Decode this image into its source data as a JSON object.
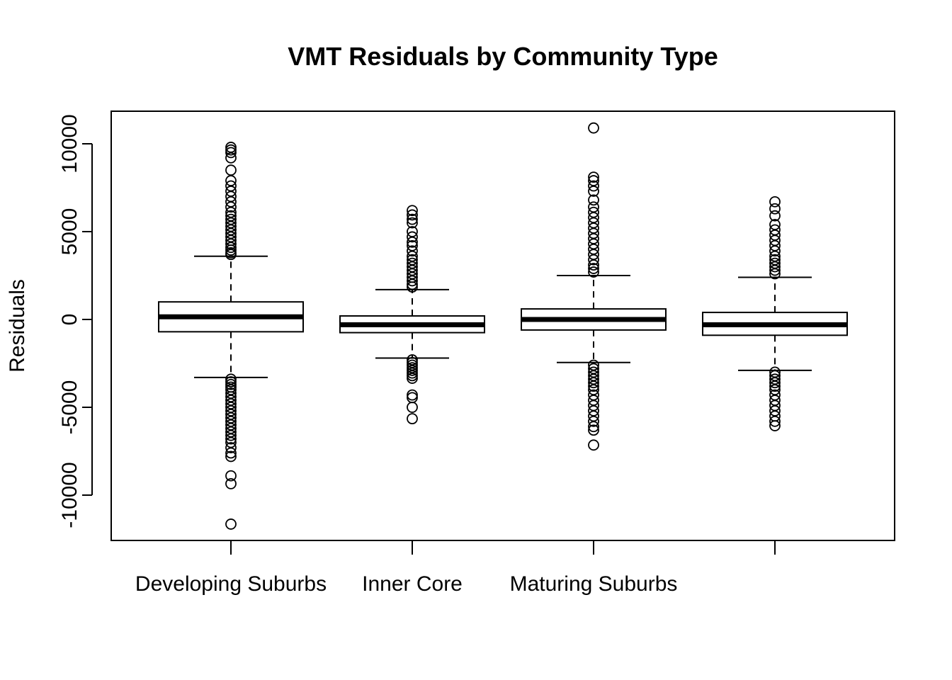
{
  "chart_data": {
    "type": "boxplot",
    "title": "VMT Residuals by Community Type",
    "xlabel": "",
    "ylabel": "Residuals",
    "ylim": [
      -12500,
      12000
    ],
    "yticks": [
      -10000,
      -5000,
      0,
      5000,
      10000
    ],
    "category_labels": [
      "Developing Suburbs",
      "Inner Core",
      "Maturing Suburbs",
      ""
    ],
    "boxes": [
      {
        "name": "Developing Suburbs",
        "q1": -700,
        "median": 150,
        "q3": 1000,
        "whisker_low": -3300,
        "whisker_high": 3600,
        "outliers": [
          9800,
          9650,
          9500,
          9200,
          8500,
          7900,
          7600,
          7300,
          7000,
          6700,
          6400,
          6100,
          5900,
          5700,
          5500,
          5300,
          5100,
          4900,
          4700,
          4500,
          4300,
          4100,
          3950,
          3800,
          3700,
          -3400,
          -3550,
          -3700,
          -3850,
          -4000,
          -4200,
          -4400,
          -4600,
          -4800,
          -5000,
          -5200,
          -5400,
          -5600,
          -5800,
          -6000,
          -6200,
          -6400,
          -6600,
          -6800,
          -7000,
          -7300,
          -7600,
          -7800,
          -8900,
          -9350,
          -11650
        ]
      },
      {
        "name": "Inner Core",
        "q1": -750,
        "median": -300,
        "q3": 200,
        "whisker_low": -2200,
        "whisker_high": 1700,
        "outliers": [
          6200,
          5950,
          5700,
          5500,
          5000,
          4700,
          4400,
          4200,
          3900,
          3600,
          3400,
          3200,
          3000,
          2800,
          2600,
          2400,
          2200,
          2000,
          1850,
          -2300,
          -2450,
          -2600,
          -2750,
          -2900,
          -3050,
          -3200,
          -3350,
          -4300,
          -4450,
          -5000,
          -5650
        ]
      },
      {
        "name": "Maturing Suburbs",
        "q1": -600,
        "median": 0,
        "q3": 600,
        "whisker_low": -2450,
        "whisker_high": 2500,
        "outliers": [
          10900,
          8100,
          7900,
          7600,
          7300,
          6800,
          6400,
          6100,
          5800,
          5500,
          5200,
          4900,
          4600,
          4300,
          4000,
          3700,
          3400,
          3100,
          2900,
          2700,
          -2600,
          -2800,
          -3000,
          -3200,
          -3400,
          -3600,
          -3800,
          -4000,
          -4300,
          -4600,
          -4900,
          -5200,
          -5500,
          -5800,
          -6100,
          -6300,
          -7150
        ]
      },
      {
        "name": "",
        "q1": -900,
        "median": -300,
        "q3": 400,
        "whisker_low": -2900,
        "whisker_high": 2400,
        "outliers": [
          6700,
          6300,
          5900,
          5400,
          5100,
          4800,
          4500,
          4200,
          3900,
          3600,
          3400,
          3200,
          3000,
          2800,
          2600,
          -3000,
          -3200,
          -3400,
          -3600,
          -3800,
          -4000,
          -4300,
          -4600,
          -4900,
          -5200,
          -5500,
          -5800,
          -6050
        ]
      }
    ]
  }
}
